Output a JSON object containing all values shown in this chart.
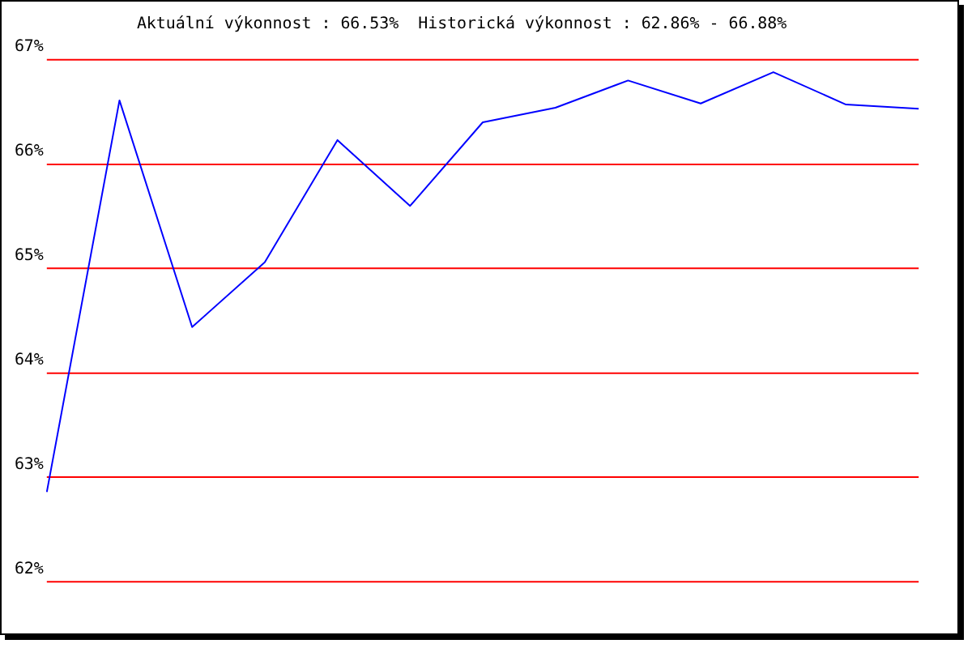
{
  "chart_data": {
    "type": "line",
    "title": "Aktuální výkonnost : 66.53%  Historická výkonnost : 62.86% - 66.88%",
    "categories": [
      null,
      null,
      null,
      null,
      null,
      null,
      null,
      null,
      null,
      null,
      null,
      null,
      null
    ],
    "series": [
      {
        "color": "#0000ff",
        "values": [
          62.86,
          66.61,
          64.44,
          65.06,
          66.23,
          65.6,
          66.4,
          66.54,
          66.8,
          66.58,
          66.88,
          66.57,
          66.53
        ]
      }
    ],
    "ylim": [
      62,
      67
    ],
    "yticks": [
      {
        "value": 62,
        "label": "62%"
      },
      {
        "value": 63,
        "label": "63%"
      },
      {
        "value": 64,
        "label": "64%"
      },
      {
        "value": 65,
        "label": "65%"
      },
      {
        "value": 66,
        "label": "66%"
      },
      {
        "value": 67,
        "label": "67%"
      }
    ],
    "grid": "y",
    "legend": false,
    "marker": "none",
    "line_style": "solid"
  }
}
